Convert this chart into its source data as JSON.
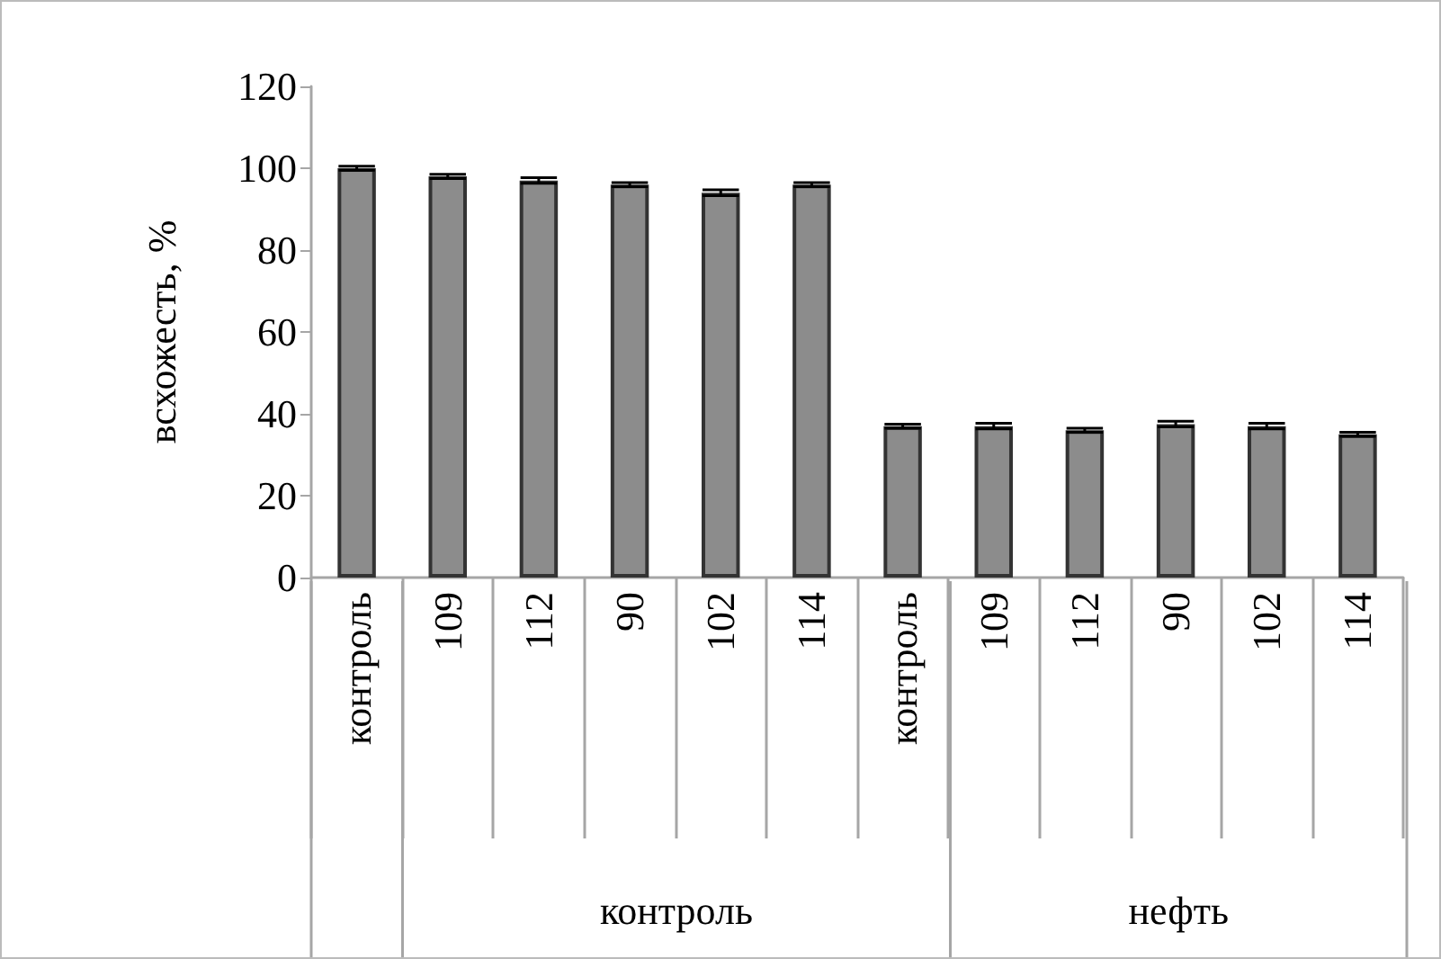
{
  "chart_data": {
    "type": "bar",
    "ylabel": "всхожесть, %",
    "categories": [
      "контроль",
      "109",
      "112",
      "90",
      "102",
      "114",
      "контроль",
      "109",
      "112",
      "90",
      "102",
      "114"
    ],
    "values": [
      100,
      98,
      97,
      96,
      94,
      96,
      37,
      37,
      36,
      37.5,
      37,
      35
    ],
    "errors": [
      0.5,
      0.5,
      0.7,
      0.5,
      0.7,
      0.5,
      0.5,
      0.7,
      0.5,
      0.7,
      0.7,
      0.5
    ],
    "color": "#8c8c8c",
    "ylim": [
      0,
      120
    ],
    "yticks": [
      0,
      20,
      40,
      60,
      80,
      100,
      120
    ],
    "annotations": [
      "контроль",
      "нефть"
    ],
    "grid": false
  }
}
